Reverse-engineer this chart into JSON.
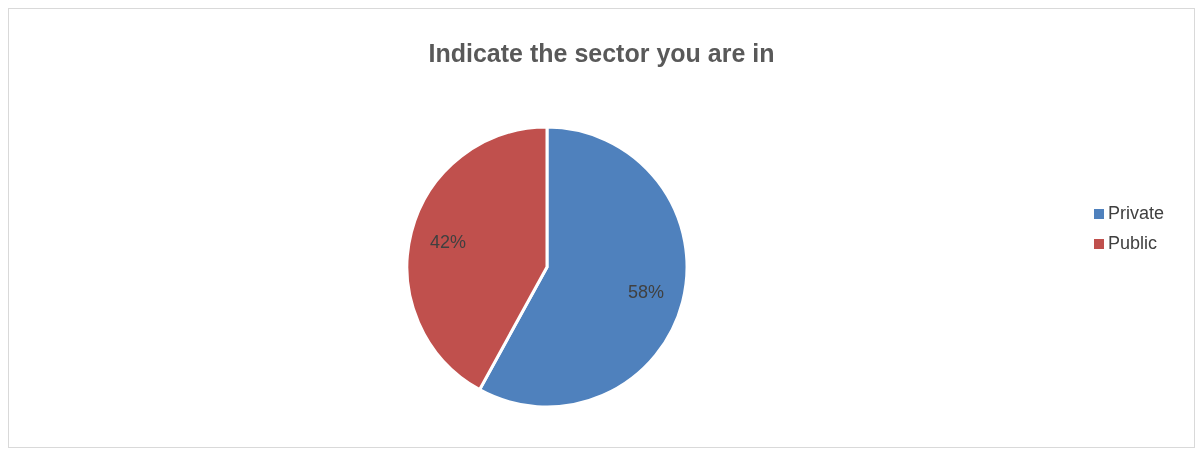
{
  "chart_data": {
    "type": "pie",
    "title": "Indicate the sector you are in",
    "categories": [
      "Private",
      "Public"
    ],
    "values": [
      58,
      42
    ],
    "colors": [
      "#4f81bd",
      "#c0504d"
    ],
    "value_labels": [
      "58%",
      "42%"
    ],
    "legend": "right"
  }
}
